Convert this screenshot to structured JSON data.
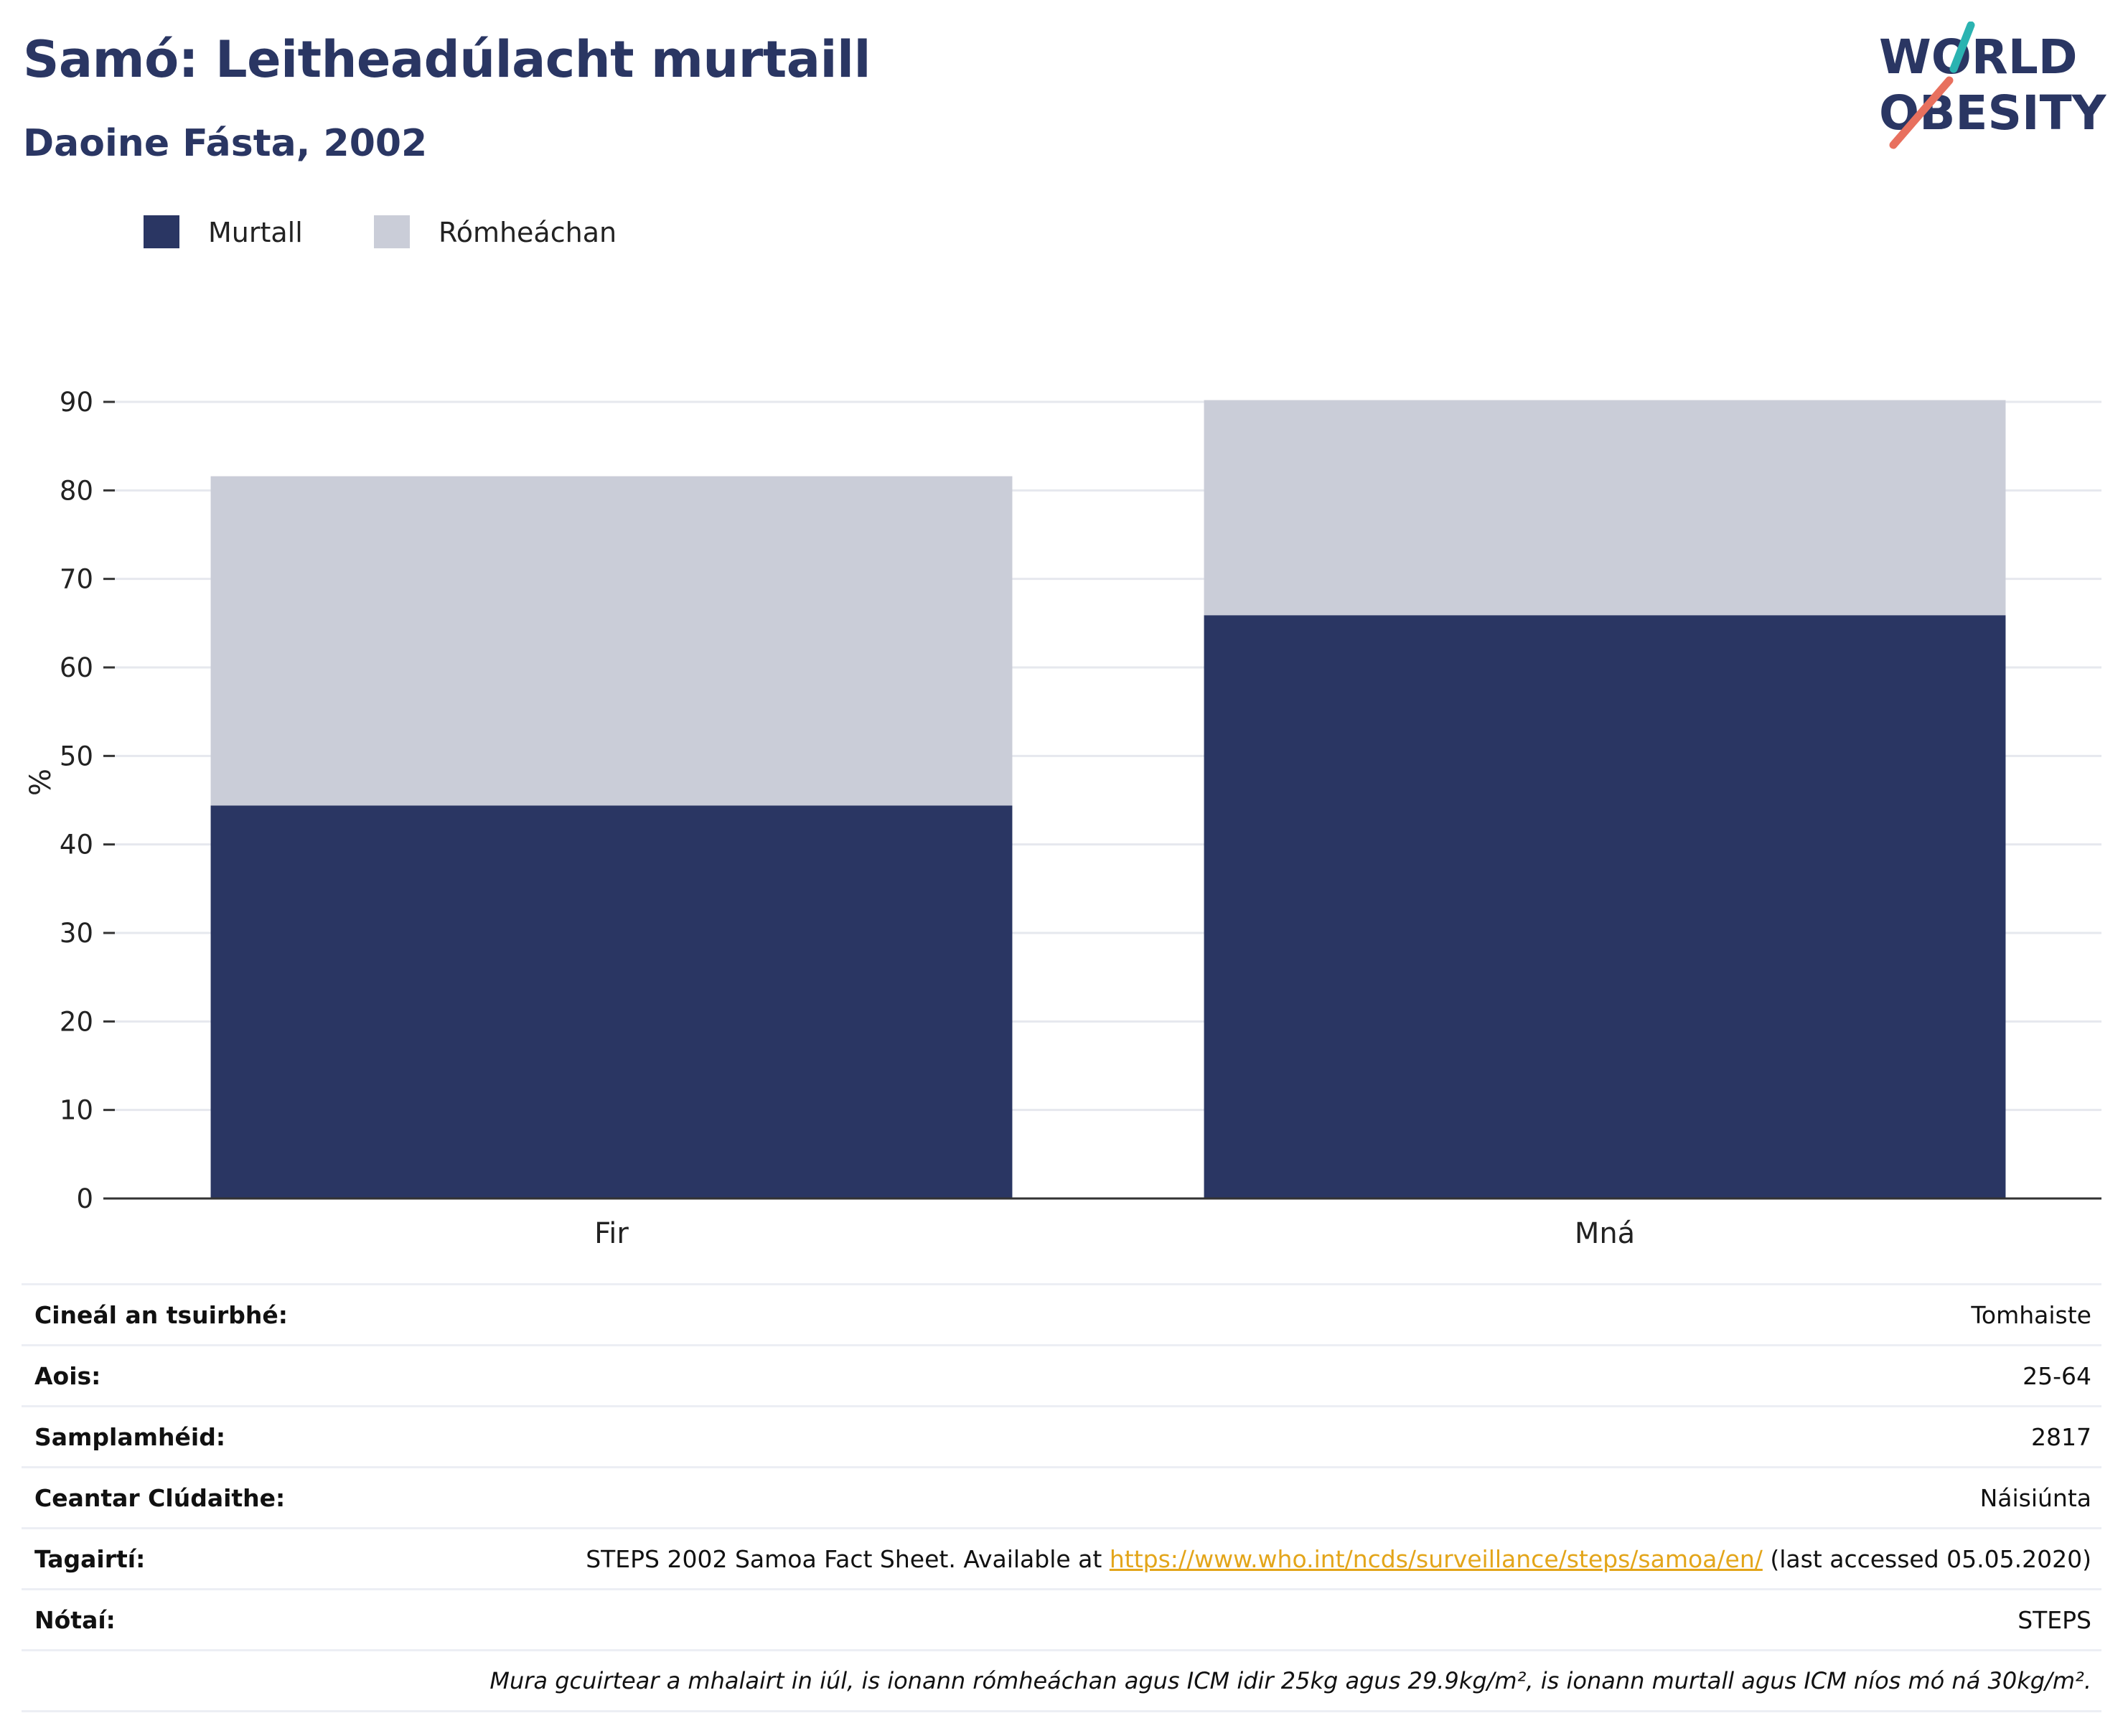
{
  "header": {
    "title": "Samó: Leitheadúlacht murtaill",
    "subtitle": "Daoine Fásta, 2002"
  },
  "logo": {
    "line1": "WORLD",
    "line2": "OBESITY",
    "colors": {
      "text": "#2a3663",
      "slash_teal": "#2bb3b1",
      "slash_coral": "#e8705e"
    }
  },
  "chart_data": {
    "type": "bar",
    "stacked": true,
    "categories": [
      "Fir",
      "Mná"
    ],
    "series": [
      {
        "name": "Murtall",
        "values": [
          44.4,
          65.9
        ],
        "color": "#2a3663"
      },
      {
        "name": "Rómheáchan",
        "values": [
          37.2,
          24.3
        ],
        "color": "#cacdd8"
      }
    ],
    "ylabel": "%",
    "xlabel": "",
    "ylim": [
      0,
      90
    ],
    "yticks": [
      0,
      10,
      20,
      30,
      40,
      50,
      60,
      70,
      80,
      90
    ],
    "grid": true,
    "legend": "top-left"
  },
  "info": {
    "rows": [
      {
        "key": "Cineál an tsuirbhé:",
        "value": "Tomhaiste"
      },
      {
        "key": "Aois:",
        "value": "25-64"
      },
      {
        "key": "Samplamhéid:",
        "value": "2817"
      },
      {
        "key": "Ceantar Clúdaithe:",
        "value": "Náisiúnta"
      },
      {
        "key": "Tagairtí:",
        "value_pre": "STEPS 2002 Samoa Fact Sheet. Available at ",
        "link": "https://www.who.int/ncds/surveillance/steps/samoa/en/",
        "value_post": " (last accessed 05.05.2020)"
      },
      {
        "key": "Nótaí:",
        "value": "STEPS"
      }
    ],
    "note": "Mura gcuirtear a mhalairt in iúl, is ionann rómheáchan agus ICM idir 25kg agus 29.9kg/m², is ionann murtall agus ICM níos mó ná 30kg/m²."
  }
}
